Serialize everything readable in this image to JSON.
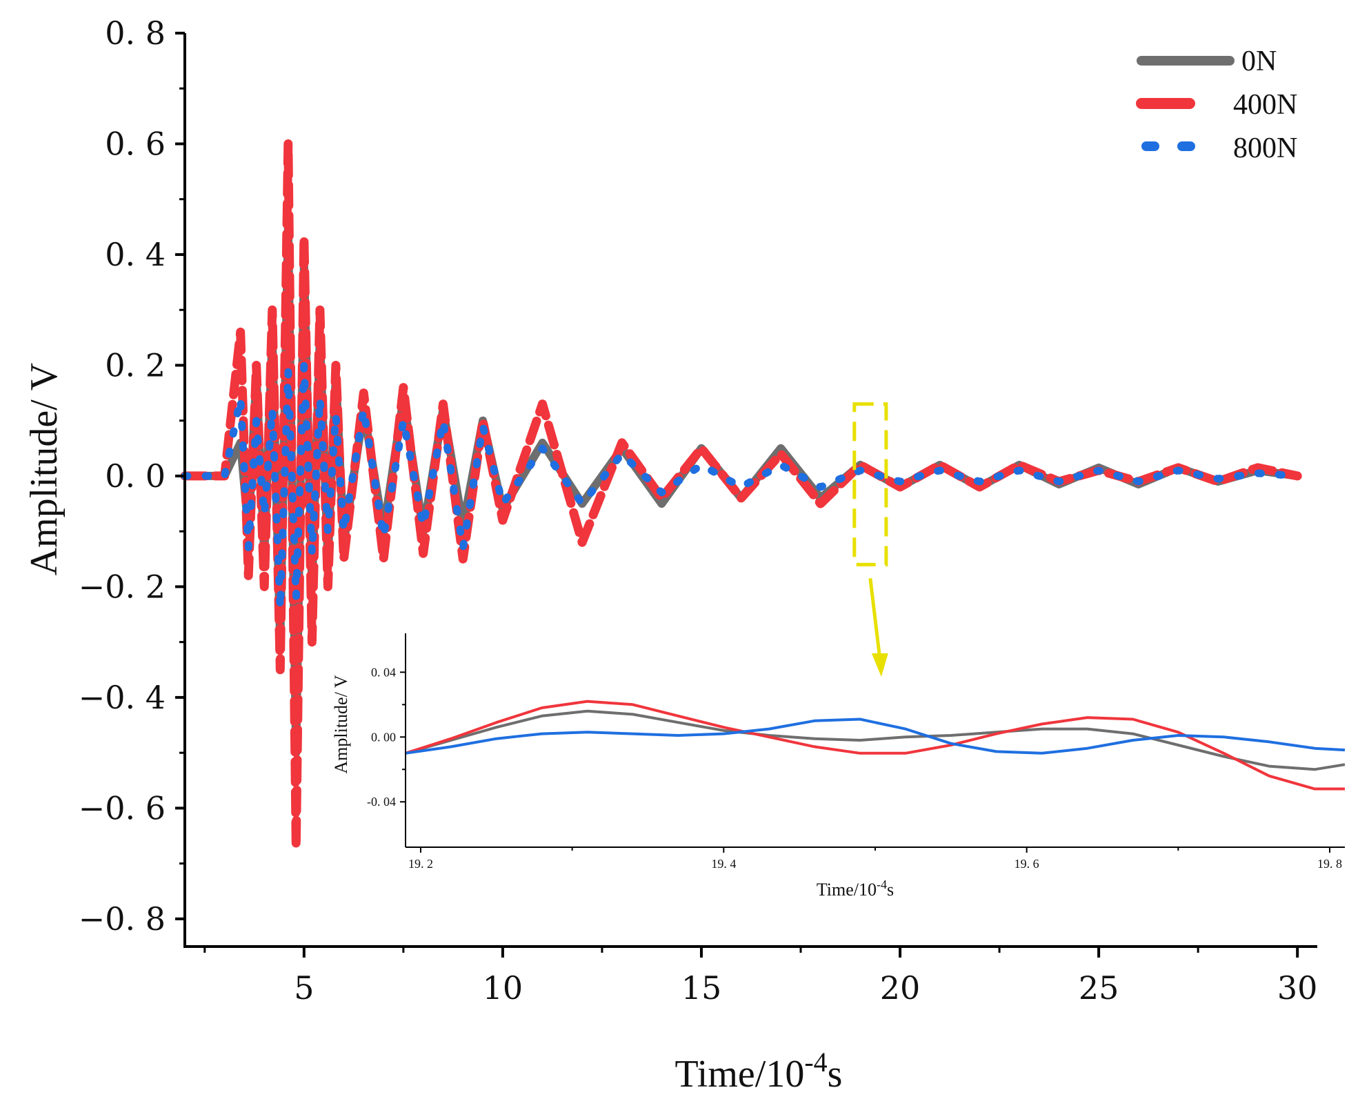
{
  "colors": {
    "0N": "#6e6e6e",
    "400N": "#f0353c",
    "800N": "#1f6fe0",
    "highlight": "#e8e000",
    "axis": "#000000"
  },
  "chart_data": [
    {
      "type": "line",
      "xlabel_main": "Time/10",
      "xlabel_sup": "-4",
      "xlabel_unit": "s",
      "ylabel": "Amplitude/ V",
      "xlim": [
        2.0,
        30.5
      ],
      "ylim": [
        -0.85,
        0.8
      ],
      "xticks": [
        5,
        10,
        15,
        20,
        25,
        30
      ],
      "xtick_labels": [
        "5",
        "10",
        "15",
        "20",
        "25",
        "30"
      ],
      "yticks": [
        0.8,
        0.6,
        0.4,
        0.2,
        0.0,
        -0.2,
        -0.4,
        -0.6,
        -0.8
      ],
      "ytick_labels": [
        "0. 8",
        "0. 6",
        "0. 4",
        "0. 2",
        "0. 0",
        "−0. 2",
        "−0. 4",
        "−0. 6",
        "−0. 8"
      ],
      "grid": false,
      "legend_position": "top-right",
      "highlight_region": {
        "x": [
          18.85,
          19.65
        ],
        "y": [
          -0.16,
          0.13
        ]
      },
      "series": [
        {
          "name": "0N",
          "style": "solid",
          "x": [
            2.0,
            3.0,
            3.4,
            3.6,
            3.8,
            4.0,
            4.2,
            4.4,
            4.6,
            4.8,
            5.0,
            5.2,
            5.4,
            5.6,
            5.8,
            6.0,
            6.5,
            7.0,
            7.5,
            8.0,
            8.5,
            9.0,
            9.5,
            10.0,
            11.0,
            12.0,
            13.0,
            14.0,
            15.0,
            16.0,
            17.0,
            18.0,
            19.0,
            20.0,
            21.0,
            22.0,
            23.0,
            24.0,
            25.0,
            26.0,
            27.0,
            28.0,
            29.0,
            30.0
          ],
          "values": [
            0.0,
            0.0,
            0.06,
            -0.1,
            0.18,
            -0.14,
            0.25,
            -0.3,
            0.45,
            -0.5,
            0.38,
            -0.2,
            0.25,
            -0.15,
            0.18,
            -0.12,
            0.12,
            -0.1,
            0.14,
            -0.1,
            0.12,
            -0.09,
            0.1,
            -0.06,
            0.06,
            -0.05,
            0.05,
            -0.05,
            0.05,
            -0.04,
            0.05,
            -0.04,
            0.02,
            -0.02,
            0.02,
            -0.02,
            0.02,
            -0.015,
            0.015,
            -0.015,
            0.015,
            -0.01,
            0.01,
            0.0
          ]
        },
        {
          "name": "400N",
          "style": "dashed",
          "x": [
            2.0,
            3.0,
            3.4,
            3.6,
            3.8,
            4.0,
            4.2,
            4.4,
            4.6,
            4.8,
            5.0,
            5.2,
            5.4,
            5.6,
            5.8,
            6.0,
            6.5,
            7.0,
            7.5,
            8.0,
            8.5,
            9.0,
            9.5,
            10.0,
            11.0,
            12.0,
            13.0,
            14.0,
            15.0,
            16.0,
            17.0,
            18.0,
            19.0,
            20.0,
            21.0,
            22.0,
            23.0,
            24.0,
            25.0,
            26.0,
            27.0,
            28.0,
            29.0,
            30.0
          ],
          "values": [
            0.0,
            0.0,
            0.26,
            -0.18,
            0.2,
            -0.2,
            0.3,
            -0.35,
            0.6,
            -0.67,
            0.43,
            -0.3,
            0.3,
            -0.2,
            0.2,
            -0.15,
            0.15,
            -0.15,
            0.16,
            -0.14,
            0.13,
            -0.15,
            0.1,
            -0.08,
            0.13,
            -0.12,
            0.06,
            -0.04,
            0.05,
            -0.04,
            0.04,
            -0.05,
            0.02,
            -0.02,
            0.02,
            -0.02,
            0.02,
            -0.01,
            0.01,
            -0.01,
            0.015,
            -0.01,
            0.015,
            0.0
          ]
        },
        {
          "name": "800N",
          "style": "dotted",
          "x": [
            2.0,
            3.0,
            3.4,
            3.6,
            3.8,
            4.0,
            4.2,
            4.4,
            4.6,
            4.8,
            5.0,
            5.2,
            5.4,
            5.6,
            5.8,
            6.0,
            6.5,
            7.0,
            7.5,
            8.0,
            8.5,
            9.0,
            9.5,
            10.0,
            11.0,
            12.0,
            13.0,
            14.0,
            15.0,
            16.0,
            17.0,
            18.0,
            19.0,
            20.0,
            21.0,
            22.0,
            23.0,
            24.0,
            25.0,
            26.0,
            27.0,
            28.0,
            29.0,
            30.0
          ],
          "values": [
            0.0,
            0.0,
            0.14,
            -0.13,
            0.1,
            -0.07,
            0.12,
            -0.24,
            0.19,
            -0.22,
            0.2,
            -0.14,
            0.14,
            -0.1,
            0.11,
            -0.1,
            0.12,
            -0.11,
            0.1,
            -0.09,
            0.1,
            -0.13,
            0.09,
            -0.05,
            0.05,
            -0.05,
            0.04,
            -0.03,
            0.02,
            -0.02,
            0.02,
            -0.02,
            0.01,
            -0.01,
            0.01,
            -0.01,
            0.01,
            -0.01,
            0.01,
            -0.01,
            0.01,
            -0.005,
            0.005,
            0.0
          ]
        }
      ]
    },
    {
      "type": "line",
      "role": "inset",
      "xlabel_main": "Time/10",
      "xlabel_sup": "-4",
      "xlabel_unit": "s",
      "ylabel": "Amplitude/ V",
      "xlim": [
        19.19,
        19.81
      ],
      "ylim": [
        -0.068,
        0.064
      ],
      "xticks": [
        19.2,
        19.4,
        19.6,
        19.8
      ],
      "xtick_labels": [
        "19. 2",
        "19. 4",
        "19. 6",
        "19. 8"
      ],
      "yticks": [
        0.04,
        0.0,
        -0.04
      ],
      "ytick_labels": [
        "0. 04",
        "0. 00",
        "-0. 04"
      ],
      "grid": false,
      "series": [
        {
          "name": "0N",
          "x": [
            19.19,
            19.22,
            19.25,
            19.28,
            19.31,
            19.34,
            19.37,
            19.4,
            19.43,
            19.46,
            19.49,
            19.52,
            19.55,
            19.58,
            19.61,
            19.64,
            19.67,
            19.7,
            19.73,
            19.76,
            19.79,
            19.81
          ],
          "values": [
            -0.01,
            -0.002,
            0.006,
            0.013,
            0.016,
            0.014,
            0.009,
            0.004,
            0.001,
            -0.001,
            -0.002,
            0.0,
            0.001,
            0.003,
            0.005,
            0.005,
            0.002,
            -0.005,
            -0.012,
            -0.018,
            -0.02,
            -0.017
          ]
        },
        {
          "name": "400N",
          "x": [
            19.19,
            19.22,
            19.25,
            19.28,
            19.31,
            19.34,
            19.37,
            19.4,
            19.43,
            19.46,
            19.49,
            19.52,
            19.55,
            19.58,
            19.61,
            19.64,
            19.67,
            19.7,
            19.73,
            19.76,
            19.79,
            19.81
          ],
          "values": [
            -0.01,
            -0.001,
            0.009,
            0.018,
            0.022,
            0.02,
            0.013,
            0.006,
            0.0,
            -0.006,
            -0.01,
            -0.01,
            -0.005,
            0.002,
            0.008,
            0.012,
            0.011,
            0.003,
            -0.01,
            -0.024,
            -0.032,
            -0.032
          ]
        },
        {
          "name": "800N",
          "x": [
            19.19,
            19.22,
            19.25,
            19.28,
            19.31,
            19.34,
            19.37,
            19.4,
            19.43,
            19.46,
            19.49,
            19.52,
            19.55,
            19.58,
            19.61,
            19.64,
            19.67,
            19.7,
            19.73,
            19.76,
            19.79,
            19.81
          ],
          "values": [
            -0.01,
            -0.006,
            -0.001,
            0.002,
            0.003,
            0.002,
            0.001,
            0.002,
            0.005,
            0.01,
            0.011,
            0.005,
            -0.004,
            -0.009,
            -0.01,
            -0.007,
            -0.002,
            0.001,
            0.0,
            -0.003,
            -0.007,
            -0.008
          ]
        }
      ]
    }
  ]
}
